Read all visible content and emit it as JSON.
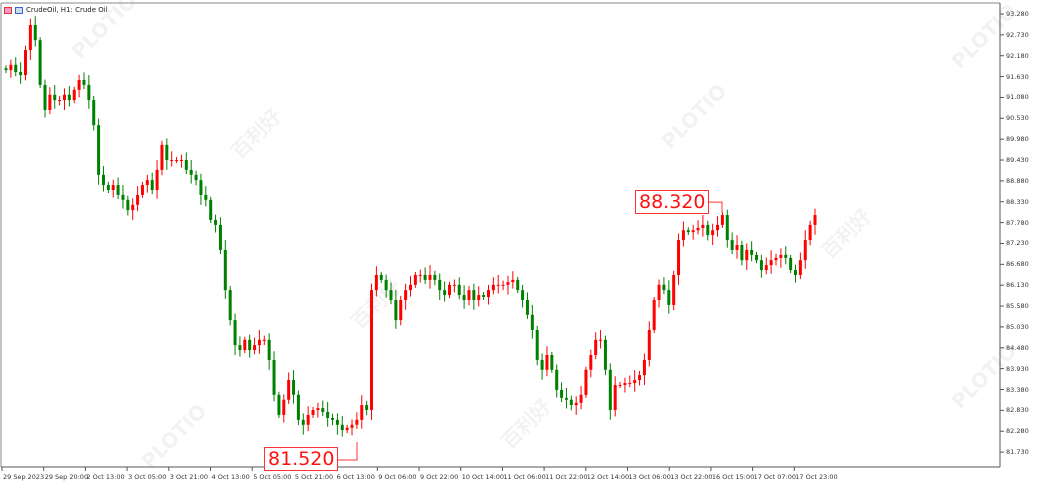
{
  "legend": {
    "symbol_text": "CrudeOil, H1:  Crude Oil",
    "icons": [
      "indicator-icon",
      "chart-settings-icon"
    ]
  },
  "watermark": {
    "brand": "PLOTIO",
    "chinese": "百利好"
  },
  "colors": {
    "bull": "#ff0000",
    "bear": "#008000",
    "axis": "#555555",
    "annotation": "#ff2222"
  },
  "annotations": [
    {
      "label": "81.520",
      "price": 81.52
    },
    {
      "label": "88.320",
      "price": 88.32
    }
  ],
  "chart_data": {
    "type": "candlestick",
    "title": "CrudeOil, H1:  Crude Oil",
    "ylim": [
      81.4,
      93.4
    ],
    "y_ticks": [
      "93.280",
      "92.730",
      "92.180",
      "91.630",
      "91.080",
      "90.530",
      "89.980",
      "89.430",
      "88.880",
      "88.330",
      "87.780",
      "87.230",
      "86.680",
      "86.130",
      "85.580",
      "85.030",
      "84.480",
      "83.930",
      "83.380",
      "82.830",
      "82.280",
      "81.730"
    ],
    "x_ticks": [
      "29 Sep 2023",
      "29 Sep 20:00",
      "2 Oct 13:00",
      "3 Oct 05:00",
      "3 Oct 21:00",
      "4 Oct 13:00",
      "5 Oct 05:00",
      "5 Oct 21:00",
      "6 Oct 13:00",
      "9 Oct 06:00",
      "9 Oct 22:00",
      "10 Oct 14:00",
      "11 Oct 06:00",
      "11 Oct 22:00",
      "12 Oct 14:00",
      "13 Oct 06:00",
      "13 Oct 22:00",
      "16 Oct 15:00",
      "17 Oct 07:00",
      "17 Oct 23:00"
    ],
    "closes": [
      91.8,
      91.94,
      91.75,
      91.67,
      92.33,
      92.99,
      92.59,
      91.41,
      90.75,
      91.15,
      91.01,
      91.01,
      91.15,
      91.01,
      91.28,
      91.54,
      91.41,
      91.01,
      90.35,
      89.04,
      88.77,
      88.64,
      88.77,
      88.51,
      88.38,
      88.11,
      88.25,
      88.51,
      88.77,
      88.9,
      88.64,
      89.17,
      89.83,
      89.43,
      89.43,
      89.43,
      89.43,
      89.17,
      89.04,
      88.9,
      88.51,
      88.38,
      87.85,
      87.72,
      87.06,
      86.0,
      85.21,
      84.55,
      84.42,
      84.69,
      84.42,
      84.55,
      84.69,
      84.69,
      84.16,
      83.24,
      82.71,
      83.11,
      83.63,
      83.24,
      82.58,
      82.45,
      82.71,
      82.84,
      82.89,
      82.79,
      82.63,
      82.58,
      82.45,
      82.31,
      82.37,
      82.45,
      82.58,
      82.97,
      82.84,
      86.0,
      86.4,
      86.27,
      86.0,
      85.74,
      85.21,
      85.74,
      86.0,
      86.14,
      86.4,
      86.4,
      86.27,
      86.4,
      86.27,
      86.0,
      85.87,
      86.14,
      86.14,
      85.87,
      85.74,
      86.0,
      85.74,
      85.87,
      85.82,
      86.0,
      86.14,
      86.14,
      86.14,
      86.21,
      86.27,
      86.0,
      85.74,
      85.35,
      84.95,
      84.16,
      83.9,
      84.29,
      83.9,
      83.37,
      83.16,
      83.11,
      82.97,
      83.03,
      83.24,
      83.9,
      84.29,
      84.69,
      84.69,
      83.9,
      82.84,
      83.5,
      83.5,
      83.55,
      83.55,
      83.63,
      83.76,
      84.16,
      84.95,
      85.74,
      86.14,
      86.0,
      85.61,
      86.4,
      87.32,
      87.58,
      87.53,
      87.58,
      87.64,
      87.72,
      87.45,
      87.58,
      87.72,
      87.98,
      87.32,
      87.06,
      87.19,
      86.79,
      87.06,
      86.93,
      86.79,
      86.53,
      86.66,
      86.79,
      86.85,
      86.93,
      86.85,
      86.53,
      86.4,
      86.79,
      87.32,
      87.72,
      87.98
    ]
  }
}
